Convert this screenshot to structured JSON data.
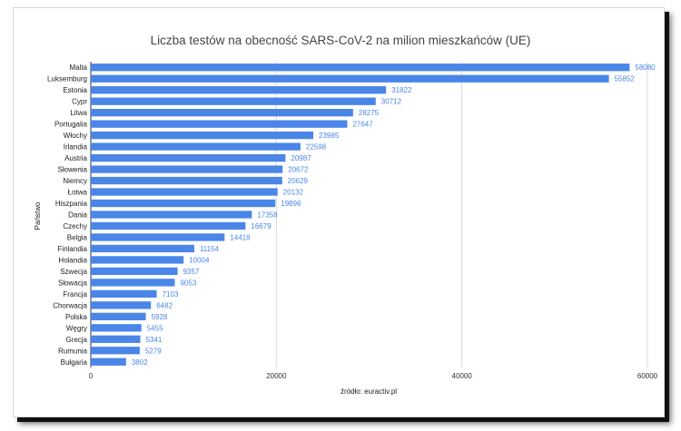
{
  "chart_data": {
    "type": "bar",
    "orientation": "horizontal",
    "title": "Liczba testów na obecność SARS-CoV-2 na milion mieszkańców (UE)",
    "xlabel": "źródło: euractiv.pl",
    "ylabel": "Państwo",
    "xlim": [
      0,
      60000
    ],
    "xticks": [
      0,
      20000,
      40000,
      60000
    ],
    "grid": true,
    "bar_color": "#4a86e8",
    "categories": [
      "Malta",
      "Luksemburg",
      "Estonia",
      "Cypr",
      "Litwa",
      "Portugalia",
      "Włochy",
      "Irlandia",
      "Austria",
      "Słowenia",
      "Niemcy",
      "Łotwa",
      "Hiszpania",
      "Dania",
      "Czechy",
      "Belgia",
      "Finlandia",
      "Holandia",
      "Szwecja",
      "Słowacja",
      "Francja",
      "Chorwacja",
      "Polska",
      "Węgry",
      "Grecja",
      "Rumunia",
      "Bułgaria"
    ],
    "values": [
      58080,
      55852,
      31822,
      30712,
      28275,
      27647,
      23985,
      22598,
      20987,
      20672,
      20629,
      20132,
      19896,
      17358,
      16679,
      14419,
      11154,
      10004,
      9357,
      9053,
      7103,
      6482,
      5928,
      5455,
      5341,
      5279,
      3802
    ]
  }
}
